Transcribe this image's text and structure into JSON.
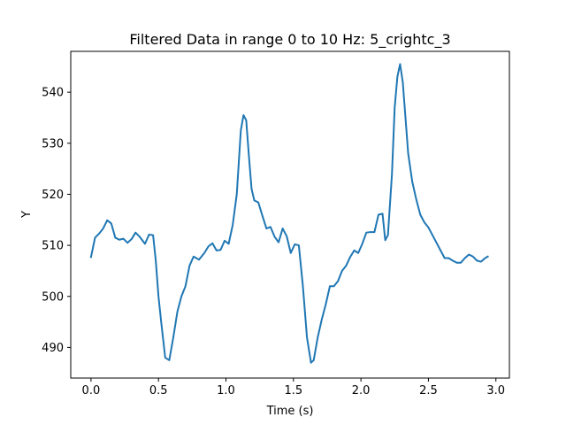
{
  "chart_data": {
    "type": "line",
    "title": "Filtered Data in range 0 to 10 Hz: 5_crightc_3",
    "xlabel": "Time (s)",
    "ylabel": "Y",
    "xlim": [
      -0.15,
      3.1
    ],
    "ylim": [
      484,
      548
    ],
    "xticks": [
      0.0,
      0.5,
      1.0,
      1.5,
      2.0,
      2.5,
      3.0
    ],
    "xtick_labels": [
      "0.0",
      "0.5",
      "1.0",
      "1.5",
      "2.0",
      "2.5",
      "3.0"
    ],
    "yticks": [
      490,
      500,
      510,
      520,
      530,
      540
    ],
    "ytick_labels": [
      "490",
      "500",
      "510",
      "520",
      "530",
      "540"
    ],
    "grid": false,
    "line_color": "#1f77b4",
    "series": [
      {
        "x": [
          0.0,
          0.03,
          0.06,
          0.09,
          0.12,
          0.15,
          0.18,
          0.21,
          0.24,
          0.27,
          0.3,
          0.33,
          0.36,
          0.4,
          0.43,
          0.46,
          0.48,
          0.5,
          0.52,
          0.55,
          0.58,
          0.61,
          0.64,
          0.67,
          0.7,
          0.73,
          0.76,
          0.8,
          0.84,
          0.87,
          0.9,
          0.93,
          0.96,
          0.99,
          1.02,
          1.05,
          1.08,
          1.11,
          1.13,
          1.15,
          1.17,
          1.19,
          1.21,
          1.24,
          1.27,
          1.3,
          1.33,
          1.36,
          1.39,
          1.42,
          1.45,
          1.48,
          1.51,
          1.54,
          1.57,
          1.6,
          1.63,
          1.65,
          1.68,
          1.71,
          1.74,
          1.77,
          1.8,
          1.83,
          1.86,
          1.89,
          1.92,
          1.95,
          1.98,
          2.01,
          2.04,
          2.07,
          2.1,
          2.13,
          2.16,
          2.18,
          2.2,
          2.23,
          2.25,
          2.27,
          2.29,
          2.31,
          2.33,
          2.35,
          2.38,
          2.41,
          2.44,
          2.47,
          2.5,
          2.53,
          2.56,
          2.59,
          2.62,
          2.65,
          2.68,
          2.71,
          2.74,
          2.77,
          2.8,
          2.83,
          2.86,
          2.89,
          2.92,
          2.94
        ],
        "y": [
          507.7,
          511.5,
          512.3,
          513.3,
          514.9,
          514.3,
          511.5,
          511.1,
          511.3,
          510.5,
          511.2,
          512.5,
          511.7,
          510.3,
          512.1,
          512.0,
          507.0,
          500.0,
          495.0,
          488.0,
          487.5,
          492.0,
          497.0,
          500.0,
          502.0,
          506.0,
          507.8,
          507.2,
          508.5,
          509.8,
          510.4,
          509.0,
          509.1,
          510.9,
          510.3,
          514.0,
          520.0,
          532.5,
          535.5,
          534.5,
          527.5,
          521.0,
          518.8,
          518.4,
          515.8,
          513.3,
          513.6,
          511.7,
          510.6,
          513.3,
          511.8,
          508.5,
          510.2,
          510.0,
          502.0,
          492.0,
          487.0,
          487.5,
          492.0,
          495.5,
          498.5,
          502.0,
          502.0,
          503.0,
          505.0,
          506.0,
          507.7,
          509.0,
          508.5,
          510.3,
          512.5,
          512.6,
          512.6,
          516.0,
          516.2,
          511.0,
          512.0,
          524.0,
          537.0,
          543.0,
          545.5,
          542.0,
          535.0,
          528.0,
          522.5,
          519.0,
          516.0,
          514.5,
          513.5,
          512.0,
          510.5,
          509.0,
          507.5,
          507.5,
          507.0,
          506.6,
          506.6,
          507.5,
          508.2,
          507.8,
          507.0,
          506.8,
          507.5,
          507.8
        ]
      }
    ]
  }
}
